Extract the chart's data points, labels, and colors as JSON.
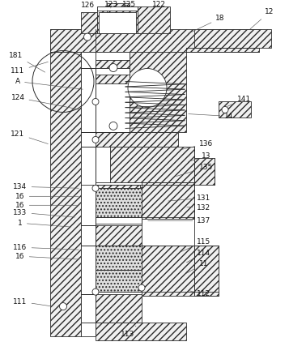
{
  "bg_color": "#ffffff",
  "line_color": "#2a2a2a",
  "hatch_fc": "#f0f0f0",
  "granular_fc": "#e0e0e0"
}
